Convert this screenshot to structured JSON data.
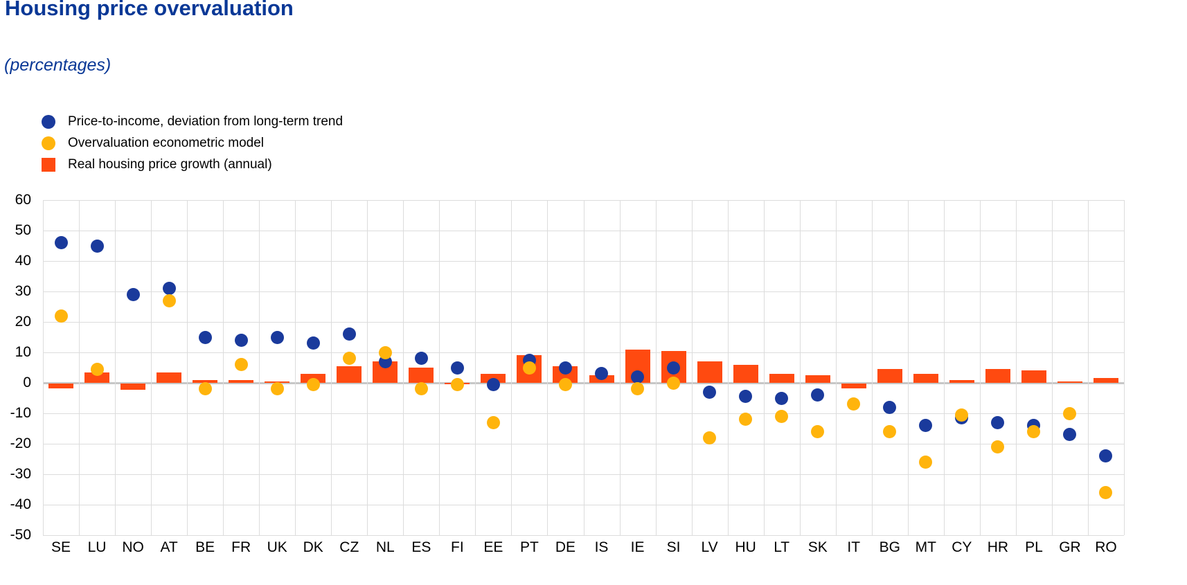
{
  "title": "Housing price overvaluation",
  "subtitle": "(percentages)",
  "colors": {
    "title": "#0a3896",
    "price_to_income": "#1a3a9c",
    "overvaluation_model": "#ffb40c",
    "real_growth": "#ff4a10",
    "gridline": "#dcdcdc",
    "zero_line": "#c7c7c7",
    "axis_text": "#000000"
  },
  "chart_data": {
    "type": "scatter",
    "subtype": "combo-scatter-bar",
    "title": "Housing price overvaluation",
    "subtitle": "(percentages)",
    "xlabel": "",
    "ylabel": "",
    "ylim": [
      -50,
      60
    ],
    "ytick_step": 10,
    "yticks": [
      60,
      50,
      40,
      30,
      20,
      10,
      0,
      -10,
      -20,
      -30,
      -40,
      -50
    ],
    "grid": true,
    "legend_position": "top-left",
    "categories": [
      "SE",
      "LU",
      "NO",
      "AT",
      "BE",
      "FR",
      "UK",
      "DK",
      "CZ",
      "NL",
      "ES",
      "FI",
      "EE",
      "PT",
      "DE",
      "IS",
      "IE",
      "SI",
      "LV",
      "HU",
      "LT",
      "SK",
      "IT",
      "BG",
      "MT",
      "CY",
      "HR",
      "PL",
      "GR",
      "RO"
    ],
    "series": [
      {
        "name": "Price-to-income, deviation from long-term trend",
        "type": "scatter",
        "marker": "circle",
        "color": "#1a3a9c",
        "values": [
          46,
          45,
          29,
          31,
          15,
          14,
          15,
          13,
          16,
          7,
          8,
          5,
          -0.5,
          7.5,
          5,
          3,
          2,
          5,
          -3,
          -4.5,
          -5,
          -4,
          null,
          -8,
          -14,
          -11.5,
          -13,
          -14,
          -17,
          -24
        ]
      },
      {
        "name": "Overvaluation econometric model",
        "type": "scatter",
        "marker": "circle",
        "color": "#ffb40c",
        "values": [
          22,
          4.5,
          null,
          27,
          -2,
          6,
          -2,
          -0.5,
          8,
          10,
          -2,
          -0.5,
          -13,
          5,
          -0.5,
          null,
          -2,
          0,
          -18,
          -12,
          -11,
          -16,
          -7,
          -16,
          -26,
          -10.5,
          -21,
          -16,
          -10,
          -36
        ]
      },
      {
        "name": "Real housing price growth (annual)",
        "type": "bar",
        "marker": "square",
        "color": "#ff4a10",
        "values": [
          -1.5,
          3.5,
          -2,
          3.5,
          1,
          0.8,
          0.5,
          3,
          5.5,
          7,
          5,
          0,
          3,
          9,
          5.5,
          2.5,
          11,
          10.5,
          7,
          6,
          3,
          2.5,
          -1.5,
          4.5,
          3,
          1,
          4.5,
          4,
          0.5,
          1.5
        ]
      }
    ]
  }
}
